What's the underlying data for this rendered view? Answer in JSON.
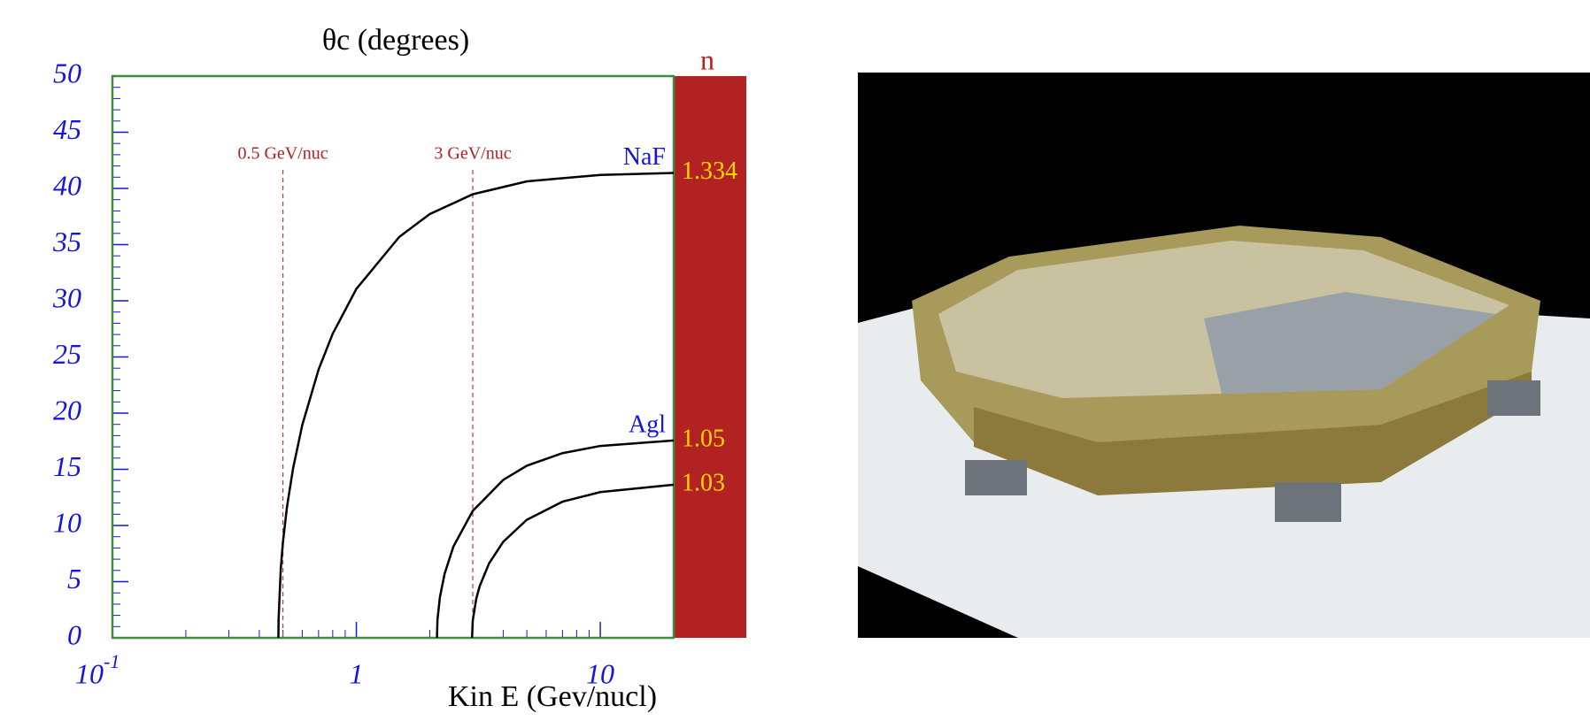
{
  "chart_data": {
    "type": "line",
    "title": "θc (degrees)",
    "x_label": "Kin E (Gev/nucl)",
    "index_title": "n",
    "xscale": "log",
    "xlim": [
      0.1,
      20
    ],
    "ylim": [
      0,
      50
    ],
    "xticks": [
      {
        "value": 0.1,
        "label": "10",
        "exponent": "-1"
      },
      1,
      10
    ],
    "xminorticks": [
      0.2,
      0.3,
      0.4,
      0.5,
      0.6,
      0.7,
      0.8,
      0.9,
      2,
      3,
      4,
      5,
      6,
      7,
      8,
      9
    ],
    "yticks": [
      0,
      5,
      10,
      15,
      20,
      25,
      30,
      35,
      40,
      45,
      50
    ],
    "yminorticks": [
      1,
      2,
      3,
      4,
      6,
      7,
      8,
      9,
      11,
      12,
      13,
      14,
      16,
      17,
      18,
      19,
      21,
      22,
      23,
      24,
      26,
      27,
      28,
      29,
      31,
      32,
      33,
      34,
      36,
      37,
      38,
      39,
      41,
      42,
      43,
      44,
      46,
      47,
      48,
      49
    ],
    "annotations": [
      {
        "x": 0.5,
        "text": "0.5 GeV/nuc"
      },
      {
        "x": 3,
        "text": "3 GeV/nuc"
      }
    ],
    "series": [
      {
        "name": "NaF",
        "index_label": "1.334",
        "color": "#000000",
        "x": [
          0.479,
          0.48,
          0.49,
          0.5,
          0.52,
          0.55,
          0.6,
          0.7,
          0.8,
          1,
          1.5,
          2,
          3,
          5,
          10,
          20
        ],
        "values": [
          0,
          1.68,
          6.18,
          8.5,
          11.72,
          15.06,
          18.93,
          23.88,
          27.07,
          31.06,
          35.69,
          37.72,
          39.48,
          40.63,
          41.2,
          41.38
        ]
      },
      {
        "name": "Agl",
        "index_label": "1.05",
        "color": "#000000",
        "x": [
          2.14,
          2.15,
          2.2,
          2.3,
          2.5,
          3,
          4,
          5,
          7,
          10,
          20
        ],
        "values": [
          0,
          1.6,
          3.61,
          5.7,
          8.13,
          11.3,
          14.06,
          15.32,
          16.44,
          17.08,
          17.57
        ]
      },
      {
        "index_label": "1.03",
        "color": "#000000",
        "x": [
          2.98,
          3,
          3.1,
          3.2,
          3.5,
          4,
          5,
          7,
          10,
          20
        ],
        "values": [
          0,
          1.53,
          3.46,
          4.57,
          6.63,
          8.55,
          10.51,
          12.12,
          12.97,
          13.63
        ]
      }
    ]
  }
}
